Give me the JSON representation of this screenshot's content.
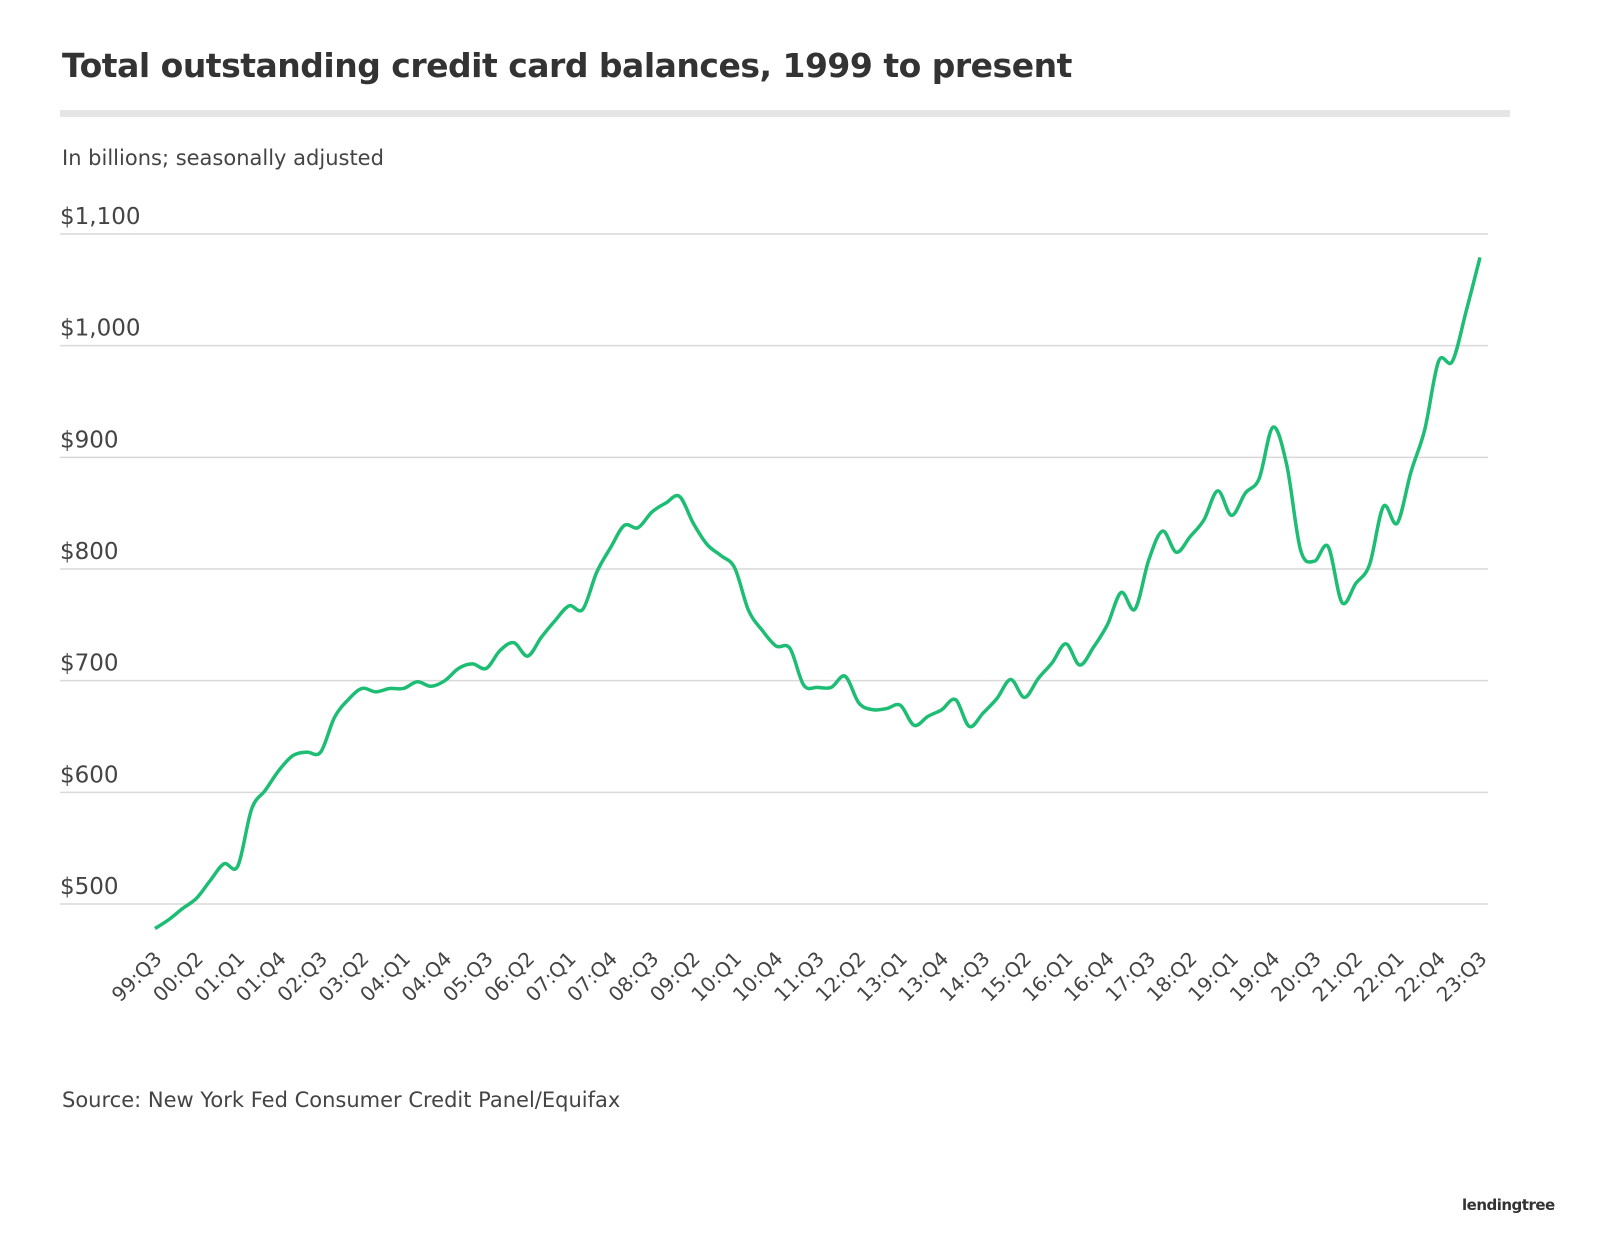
{
  "title": "Total outstanding credit card balances, 1999 to present",
  "subtitle": "In billions; seasonally adjusted",
  "source": "Source: New York Fed Consumer Credit Panel/Equifax",
  "logo": "lendingtree",
  "colors": {
    "line": "#1dbd74",
    "grid": "#d9d9d9",
    "text": "#444444"
  },
  "chart_data": {
    "type": "line",
    "title": "Total outstanding credit card balances, 1999 to present",
    "ylabel": "In billions; seasonally adjusted",
    "ylim": [
      500,
      1100
    ],
    "yticks": [
      500,
      600,
      700,
      800,
      900,
      1000,
      1100
    ],
    "ytick_labels": [
      "$500",
      "$600",
      "$700",
      "$800",
      "$900",
      "$1,000",
      "$1,100"
    ],
    "grid": true,
    "x_start": "99:Q3",
    "x_end": "23:Q3",
    "xtick_labels": [
      "99:Q3",
      "00:Q2",
      "01:Q1",
      "01:Q4",
      "02:Q3",
      "03:Q2",
      "04:Q1",
      "04:Q4",
      "05:Q3",
      "06:Q2",
      "07:Q1",
      "07:Q4",
      "08:Q3",
      "09:Q2",
      "10:Q1",
      "10:Q4",
      "11:Q3",
      "12:Q2",
      "13:Q1",
      "13:Q4",
      "14:Q3",
      "15:Q2",
      "16:Q1",
      "16:Q4",
      "17:Q3",
      "18:Q2",
      "19:Q1",
      "19:Q4",
      "20:Q3",
      "21:Q2",
      "22:Q1",
      "22:Q4",
      "23:Q3"
    ],
    "values": [
      478,
      486,
      496,
      505,
      521,
      536,
      534,
      585,
      602,
      620,
      633,
      636,
      636,
      667,
      683,
      693,
      690,
      693,
      693,
      699,
      695,
      700,
      711,
      715,
      711,
      727,
      734,
      722,
      739,
      754,
      767,
      764,
      797,
      819,
      839,
      837,
      851,
      859,
      865,
      841,
      822,
      812,
      801,
      763,
      745,
      731,
      729,
      696,
      694,
      694,
      704,
      680,
      674,
      675,
      678,
      660,
      668,
      674,
      683,
      659,
      671,
      684,
      701,
      685,
      702,
      716,
      733,
      714,
      730,
      750,
      779,
      764,
      808,
      834,
      815,
      829,
      844,
      870,
      848,
      868,
      881,
      927,
      893,
      817,
      807,
      820,
      770,
      787,
      804,
      856,
      841,
      887,
      925,
      986,
      986,
      1031,
      1079
    ]
  }
}
